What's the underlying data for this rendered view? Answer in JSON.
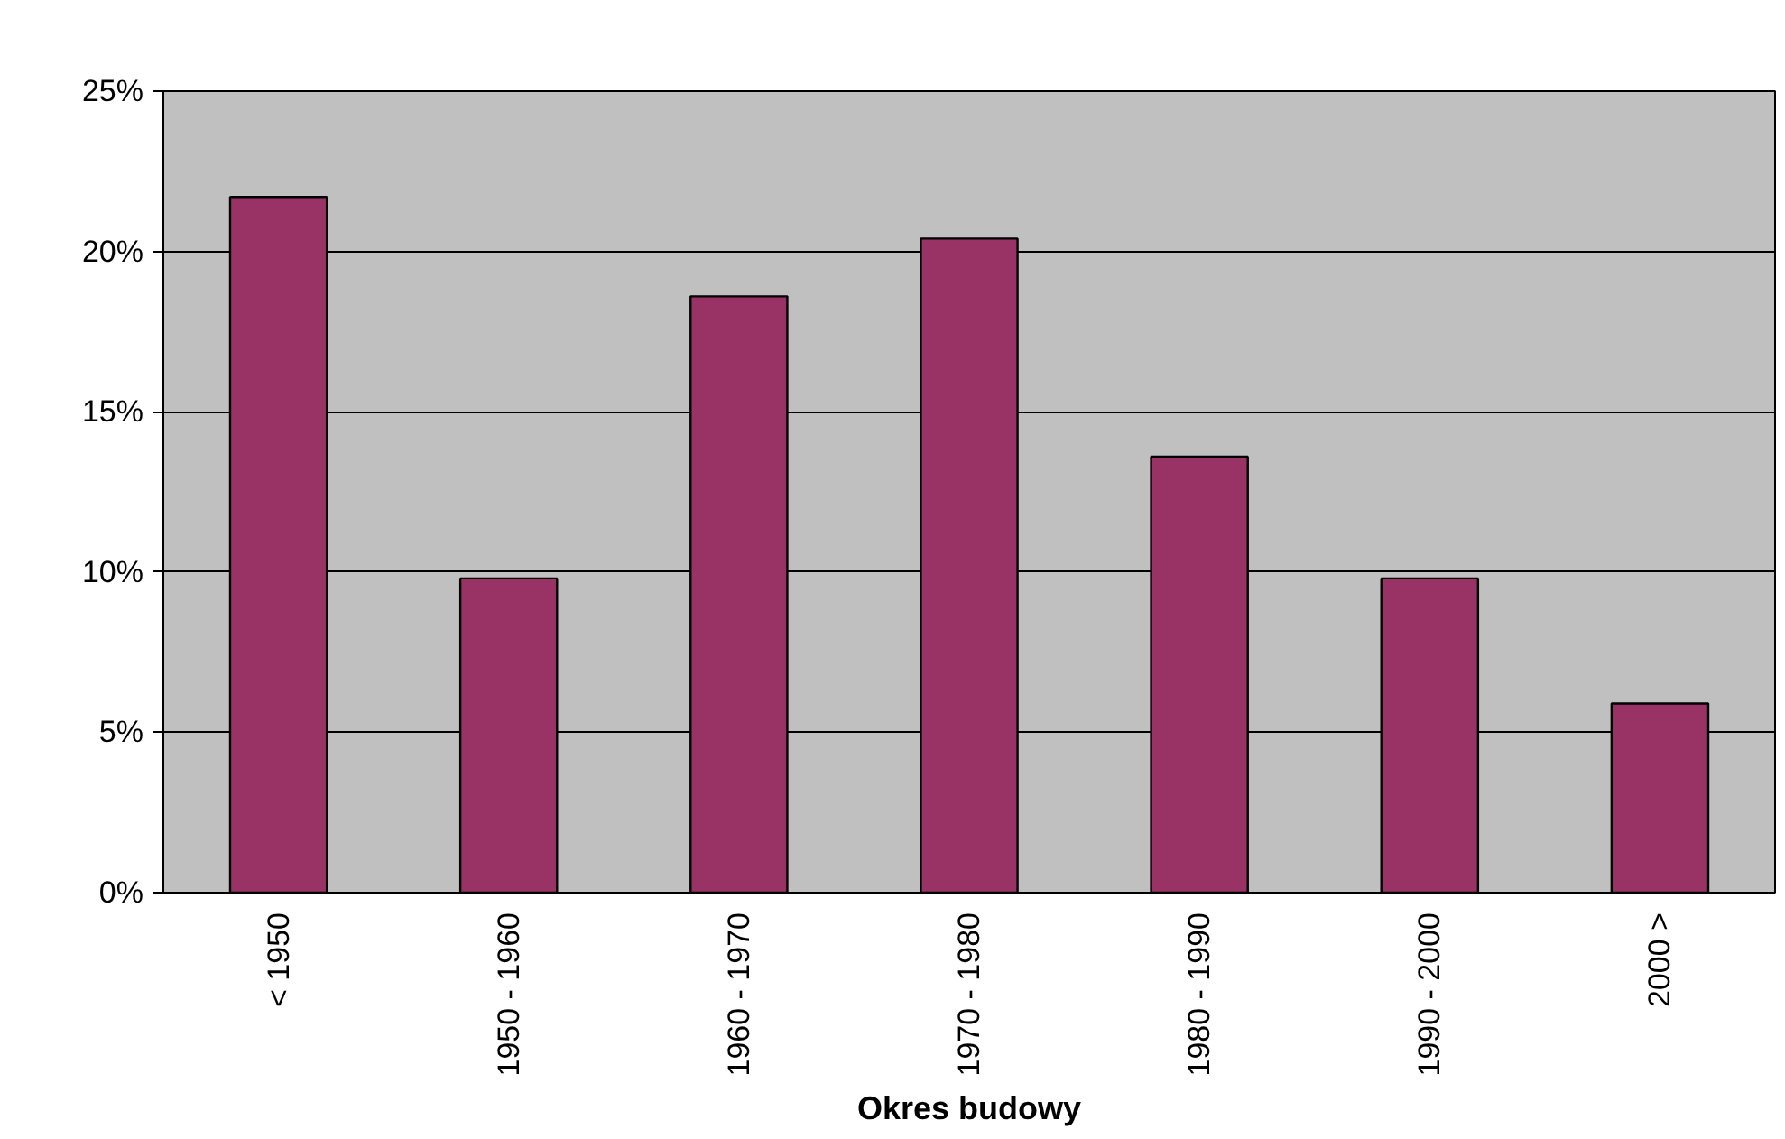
{
  "chart_data": {
    "type": "bar",
    "xlabel": "Okres budowy",
    "categories": [
      "< 1950",
      "1950 - 1960",
      "1960 - 1970",
      "1970 - 1980",
      "1980 - 1990",
      "1990 - 2000",
      "2000 >"
    ],
    "values": [
      21.7,
      9.8,
      18.6,
      20.4,
      13.6,
      9.8,
      5.9
    ],
    "color": "#993366",
    "ylim": [
      0,
      25
    ],
    "yticks": [
      {
        "value": 0,
        "label": "0%"
      },
      {
        "value": 5,
        "label": "5%"
      },
      {
        "value": 10,
        "label": "10%"
      },
      {
        "value": 15,
        "label": "15%"
      },
      {
        "value": 20,
        "label": "20%"
      },
      {
        "value": 25,
        "label": "25%"
      }
    ],
    "grid": "y"
  }
}
